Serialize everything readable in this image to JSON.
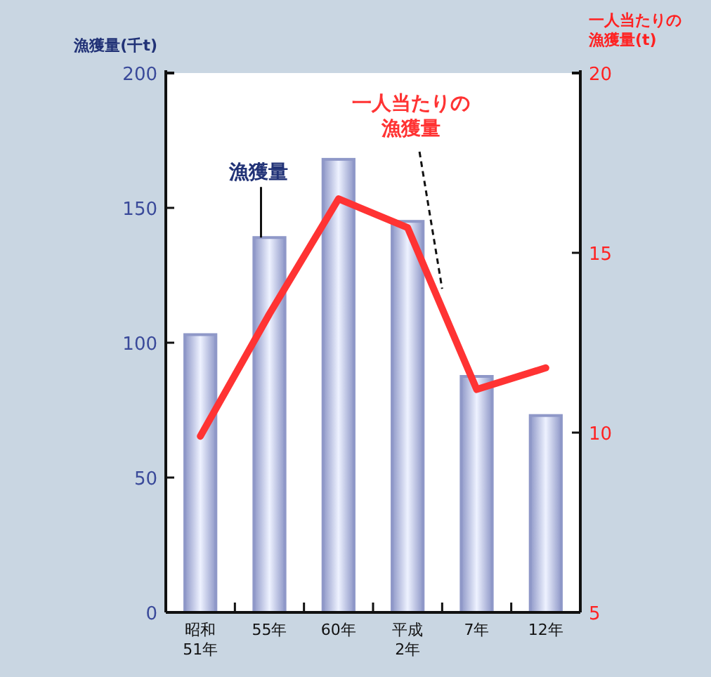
{
  "chart_data": {
    "type": "bar",
    "ylabel": "漁獲量(千t)",
    "y2label": "一人当たりの漁獲量(t)",
    "categories": [
      "昭和\n51年",
      "55年",
      "60年",
      "平成\n2年",
      "7年",
      "12年"
    ],
    "series": [
      {
        "name": "漁獲量",
        "color": "#8f98c8",
        "values": [
          103,
          139,
          168,
          145,
          87.5,
          73
        ]
      },
      {
        "name": "一人当たりの漁獲量",
        "type": "line",
        "axis": "y2",
        "color": "#ff3333",
        "values": [
          9.9,
          13.3,
          16.5,
          15.7,
          11.2,
          11.8
        ]
      }
    ],
    "ylim": [
      0,
      200
    ],
    "yticks": [
      0,
      50,
      100,
      150,
      200
    ],
    "y2lim": [
      5,
      20
    ],
    "y2ticks": [
      5,
      10,
      15,
      20
    ]
  }
}
